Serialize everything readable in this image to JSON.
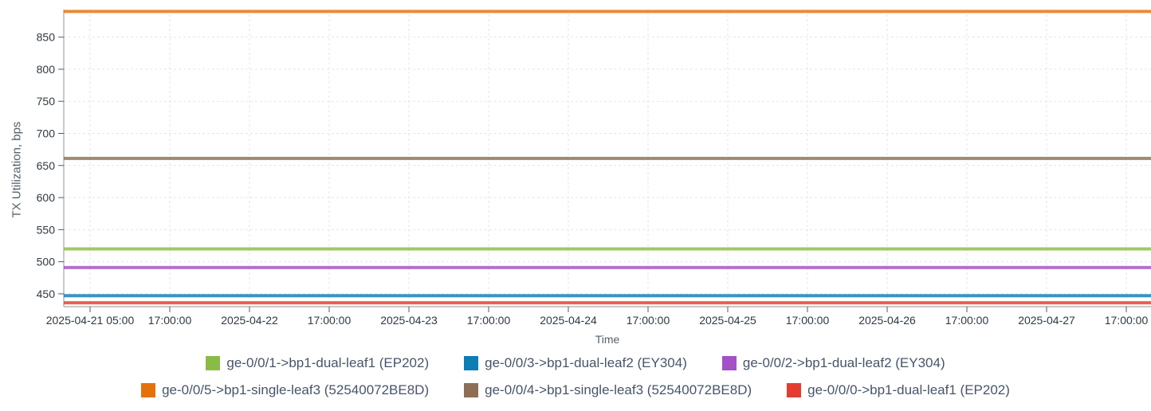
{
  "page": {
    "background": "#ffffff"
  },
  "chart_data": {
    "type": "line",
    "title": "",
    "xlabel": "Time",
    "ylabel": "TX Utilization, bps",
    "ylim": [
      430,
      893
    ],
    "grid": true,
    "legend_position": "bottom",
    "y_ticks": [
      450,
      500,
      550,
      600,
      650,
      700,
      750,
      800,
      850
    ],
    "x_tick_labels": [
      "2025-04-21 05:00",
      "17:00:00",
      "2025-04-22",
      "17:00:00",
      "2025-04-23",
      "17:00:00",
      "2025-04-24",
      "17:00:00",
      "2025-04-25",
      "17:00:00",
      "2025-04-26",
      "17:00:00",
      "2025-04-27",
      "17:00:00"
    ],
    "series_value_type": "constant over full time range",
    "series": [
      {
        "name": "ge-0/0/1->bp1-dual-leaf1 (EP202)",
        "color": "#8abc45",
        "value": 520
      },
      {
        "name": "ge-0/0/3->bp1-dual-leaf2 (EY304)",
        "color": "#0e7cb5",
        "value": 447
      },
      {
        "name": "ge-0/0/2->bp1-dual-leaf2 (EY304)",
        "color": "#a351c5",
        "value": 491
      },
      {
        "name": "ge-0/0/5->bp1-single-leaf3 (52540072BE8D)",
        "color": "#e5710b",
        "value": 890
      },
      {
        "name": "ge-0/0/4->bp1-single-leaf3 (52540072BE8D)",
        "color": "#8f6e56",
        "value": 661
      },
      {
        "name": "ge-0/0/0->bp1-dual-leaf1 (EP202)",
        "color": "#e43d30",
        "value": 436
      }
    ]
  },
  "legend": {
    "rows": [
      [
        0,
        1,
        2
      ],
      [
        3,
        4,
        5
      ]
    ]
  }
}
